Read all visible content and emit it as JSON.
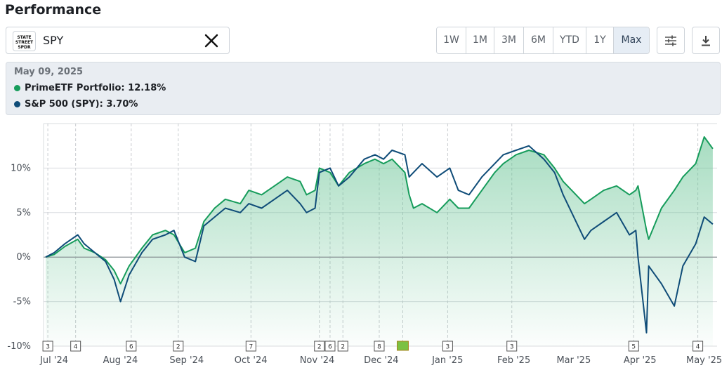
{
  "header": {
    "title": "Performance"
  },
  "ticker": {
    "logo_line1": "STATE",
    "logo_line2": "STREET",
    "logo_line3": "SPDR",
    "symbol": "SPY",
    "clear_icon": "close-icon"
  },
  "ranges": {
    "buttons": [
      "1W",
      "1M",
      "3M",
      "6M",
      "YTD",
      "1Y",
      "Max"
    ],
    "active": "Max"
  },
  "toolbar": {
    "settings_icon": "sliders-icon",
    "download_icon": "download-icon"
  },
  "tooltip": {
    "date": "May 09, 2025",
    "series1": "PrimeETF Portfolio: 12.18%",
    "series2": "S&P 500 (SPY): 3.70%"
  },
  "colors": {
    "portfolio": "#169c5b",
    "spy": "#0f4c78",
    "fill": "#8fd3ad",
    "active_bg": "#e6edf5"
  },
  "chart_data": {
    "type": "line",
    "ylabel": "",
    "xlabel": "",
    "y_unit": "%",
    "ylim": [
      -10,
      15
    ],
    "yticks": [
      "10%",
      "5%",
      "0%",
      "-5%",
      "-10%"
    ],
    "x_labels": [
      "Jul '24",
      "Aug '24",
      "Sep '24",
      "Oct '24",
      "Nov '24",
      "Dec '24",
      "Jan '25",
      "Feb '25",
      "Mar '25",
      "Apr '25",
      "May '25"
    ],
    "x": [
      "2024-07-01",
      "2024-07-05",
      "2024-07-10",
      "2024-07-16",
      "2024-07-19",
      "2024-07-24",
      "2024-07-29",
      "2024-08-02",
      "2024-08-05",
      "2024-08-09",
      "2024-08-15",
      "2024-08-20",
      "2024-08-26",
      "2024-08-30",
      "2024-09-04",
      "2024-09-09",
      "2024-09-13",
      "2024-09-18",
      "2024-09-23",
      "2024-09-30",
      "2024-10-04",
      "2024-10-10",
      "2024-10-16",
      "2024-10-22",
      "2024-10-28",
      "2024-10-31",
      "2024-11-04",
      "2024-11-06",
      "2024-11-11",
      "2024-11-15",
      "2024-11-20",
      "2024-11-27",
      "2024-12-02",
      "2024-12-06",
      "2024-12-10",
      "2024-12-16",
      "2024-12-18",
      "2024-12-20",
      "2024-12-24",
      "2024-12-31",
      "2025-01-06",
      "2025-01-10",
      "2025-01-15",
      "2025-01-21",
      "2025-01-27",
      "2025-01-31",
      "2025-02-06",
      "2025-02-12",
      "2025-02-19",
      "2025-02-24",
      "2025-02-28",
      "2025-03-04",
      "2025-03-10",
      "2025-03-13",
      "2025-03-19",
      "2025-03-25",
      "2025-03-31",
      "2025-04-03",
      "2025-04-04",
      "2025-04-08",
      "2025-04-09",
      "2025-04-15",
      "2025-04-21",
      "2025-04-25",
      "2025-05-01",
      "2025-05-05",
      "2025-05-09"
    ],
    "series": [
      {
        "name": "PrimeETF Portfolio",
        "color": "#169c5b",
        "values": [
          0.0,
          0.3,
          1.2,
          2.0,
          1.0,
          0.5,
          -0.3,
          -1.5,
          -3.0,
          -1.0,
          1.0,
          2.5,
          3.0,
          2.5,
          0.5,
          1.0,
          4.0,
          5.5,
          6.5,
          6.0,
          7.5,
          7.0,
          8.0,
          9.0,
          8.5,
          7.0,
          7.5,
          10.0,
          9.5,
          8.0,
          9.5,
          10.5,
          11.0,
          10.5,
          11.0,
          9.5,
          7.0,
          5.5,
          6.0,
          5.0,
          6.5,
          5.5,
          5.5,
          7.5,
          9.5,
          10.5,
          11.5,
          12.0,
          11.5,
          10.0,
          8.5,
          7.5,
          6.0,
          6.5,
          7.5,
          8.0,
          7.0,
          7.5,
          8.0,
          3.0,
          2.0,
          5.5,
          7.5,
          9.0,
          10.5,
          13.5,
          12.18
        ]
      },
      {
        "name": "S&P 500 (SPY)",
        "color": "#0f4c78",
        "values": [
          0.0,
          0.5,
          1.5,
          2.5,
          1.5,
          0.5,
          -0.5,
          -2.5,
          -5.0,
          -2.0,
          0.5,
          2.0,
          2.5,
          3.0,
          0.0,
          -0.5,
          3.5,
          4.5,
          5.5,
          5.0,
          6.0,
          5.5,
          6.5,
          7.5,
          6.0,
          5.0,
          5.5,
          9.5,
          10.0,
          8.0,
          9.0,
          11.0,
          11.5,
          11.0,
          12.0,
          11.5,
          9.0,
          9.5,
          10.5,
          9.0,
          10.0,
          7.5,
          7.0,
          9.0,
          10.5,
          11.5,
          12.0,
          12.5,
          11.0,
          9.5,
          7.0,
          5.0,
          2.0,
          3.0,
          4.0,
          5.0,
          2.5,
          3.0,
          0.0,
          -8.5,
          -1.0,
          -3.0,
          -5.5,
          -1.0,
          1.5,
          4.5,
          3.7
        ]
      }
    ],
    "event_markers": [
      {
        "x": "2024-07-02",
        "label": "3"
      },
      {
        "x": "2024-07-15",
        "label": "4"
      },
      {
        "x": "2024-08-10",
        "label": "6"
      },
      {
        "x": "2024-09-01",
        "label": "2"
      },
      {
        "x": "2024-10-05",
        "label": "7"
      },
      {
        "x": "2024-11-06",
        "label": "2"
      },
      {
        "x": "2024-11-11",
        "label": "6"
      },
      {
        "x": "2024-11-17",
        "label": "2"
      },
      {
        "x": "2024-12-04",
        "label": "8"
      },
      {
        "x": "2024-12-15",
        "label": ""
      },
      {
        "x": "2025-01-05",
        "label": "3"
      },
      {
        "x": "2025-02-04",
        "label": "3"
      },
      {
        "x": "2025-04-02",
        "label": "5"
      },
      {
        "x": "2025-05-02",
        "label": "4"
      }
    ],
    "grid": true,
    "legend": "none"
  }
}
